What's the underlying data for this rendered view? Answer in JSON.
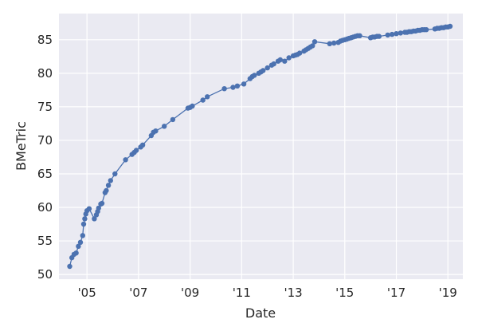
{
  "chart_data": {
    "type": "line",
    "xlabel": "Date",
    "ylabel": "BMeTric",
    "x_tick_labels": [
      "'05",
      "'07",
      "'09",
      "'11",
      "'13",
      "'15",
      "'17",
      "'19"
    ],
    "x_tick_dates": [
      "2005-01-01",
      "2007-01-01",
      "2009-01-01",
      "2011-01-01",
      "2013-01-01",
      "2015-01-01",
      "2017-01-01",
      "2019-01-01"
    ],
    "xlim": [
      "2003-12-01",
      "2019-08-01"
    ],
    "y_ticks": [
      50,
      55,
      60,
      65,
      70,
      75,
      80,
      85
    ],
    "ylim": [
      49.3,
      88.9
    ],
    "grid": true,
    "background": "#eaeaf2",
    "series_color": "#4c72b0",
    "series": [
      {
        "points": [
          [
            "2004-05-01",
            51.2
          ],
          [
            "2004-06-01",
            52.5
          ],
          [
            "2004-07-01",
            53.0
          ],
          [
            "2004-08-01",
            53.2
          ],
          [
            "2004-09-01",
            54.2
          ],
          [
            "2004-10-01",
            54.8
          ],
          [
            "2004-11-01",
            55.8
          ],
          [
            "2004-11-15",
            57.5
          ],
          [
            "2004-12-01",
            58.3
          ],
          [
            "2004-12-15",
            59.0
          ],
          [
            "2005-01-01",
            59.5
          ],
          [
            "2005-02-01",
            59.8
          ],
          [
            "2005-04-15",
            58.3
          ],
          [
            "2005-05-15",
            58.9
          ],
          [
            "2005-06-01",
            59.4
          ],
          [
            "2005-06-15",
            59.9
          ],
          [
            "2005-07-15",
            60.5
          ],
          [
            "2005-08-01",
            60.6
          ],
          [
            "2005-09-15",
            62.2
          ],
          [
            "2005-10-01",
            62.5
          ],
          [
            "2005-11-01",
            63.3
          ],
          [
            "2005-12-01",
            64.0
          ],
          [
            "2006-02-01",
            65.0
          ],
          [
            "2006-07-01",
            67.1
          ],
          [
            "2006-10-01",
            67.9
          ],
          [
            "2006-11-01",
            68.2
          ],
          [
            "2006-12-01",
            68.5
          ],
          [
            "2007-02-01",
            69.0
          ],
          [
            "2007-03-01",
            69.3
          ],
          [
            "2007-07-01",
            70.7
          ],
          [
            "2007-08-01",
            71.2
          ],
          [
            "2007-09-01",
            71.4
          ],
          [
            "2008-01-01",
            72.1
          ],
          [
            "2008-05-01",
            73.1
          ],
          [
            "2008-12-01",
            74.8
          ],
          [
            "2009-01-01",
            74.9
          ],
          [
            "2009-02-01",
            75.1
          ],
          [
            "2009-07-01",
            76.0
          ],
          [
            "2009-09-01",
            76.5
          ],
          [
            "2010-05-01",
            77.7
          ],
          [
            "2010-09-01",
            77.9
          ],
          [
            "2010-11-01",
            78.1
          ],
          [
            "2011-02-01",
            78.4
          ],
          [
            "2011-05-01",
            79.2
          ],
          [
            "2011-06-01",
            79.5
          ],
          [
            "2011-07-01",
            79.7
          ],
          [
            "2011-09-01",
            80.0
          ],
          [
            "2011-10-01",
            80.2
          ],
          [
            "2011-11-01",
            80.4
          ],
          [
            "2012-01-01",
            80.8
          ],
          [
            "2012-03-01",
            81.2
          ],
          [
            "2012-04-01",
            81.4
          ],
          [
            "2012-06-01",
            81.8
          ],
          [
            "2012-07-01",
            82.0
          ],
          [
            "2012-09-01",
            81.8
          ],
          [
            "2012-11-01",
            82.3
          ],
          [
            "2013-01-01",
            82.6
          ],
          [
            "2013-02-01",
            82.7
          ],
          [
            "2013-03-01",
            82.8
          ],
          [
            "2013-04-01",
            83.0
          ],
          [
            "2013-06-01",
            83.3
          ],
          [
            "2013-07-01",
            83.5
          ],
          [
            "2013-08-01",
            83.7
          ],
          [
            "2013-09-01",
            83.9
          ],
          [
            "2013-10-01",
            84.1
          ],
          [
            "2013-11-01",
            84.7
          ],
          [
            "2014-06-01",
            84.4
          ],
          [
            "2014-08-01",
            84.5
          ],
          [
            "2014-10-01",
            84.6
          ],
          [
            "2014-11-01",
            84.8
          ],
          [
            "2014-12-01",
            84.9
          ],
          [
            "2015-01-01",
            85.0
          ],
          [
            "2015-02-01",
            85.1
          ],
          [
            "2015-03-01",
            85.2
          ],
          [
            "2015-04-01",
            85.3
          ],
          [
            "2015-05-01",
            85.4
          ],
          [
            "2015-06-01",
            85.5
          ],
          [
            "2015-07-01",
            85.6
          ],
          [
            "2015-08-01",
            85.6
          ],
          [
            "2016-01-01",
            85.3
          ],
          [
            "2016-02-01",
            85.4
          ],
          [
            "2016-03-01",
            85.4
          ],
          [
            "2016-04-01",
            85.5
          ],
          [
            "2016-05-01",
            85.5
          ],
          [
            "2016-09-01",
            85.7
          ],
          [
            "2016-11-01",
            85.8
          ],
          [
            "2017-01-01",
            85.9
          ],
          [
            "2017-03-01",
            86.0
          ],
          [
            "2017-05-01",
            86.1
          ],
          [
            "2017-06-01",
            86.1
          ],
          [
            "2017-07-01",
            86.2
          ],
          [
            "2017-08-01",
            86.2
          ],
          [
            "2017-09-01",
            86.3
          ],
          [
            "2017-10-01",
            86.3
          ],
          [
            "2017-11-01",
            86.4
          ],
          [
            "2017-12-01",
            86.4
          ],
          [
            "2018-01-01",
            86.5
          ],
          [
            "2018-02-01",
            86.5
          ],
          [
            "2018-03-01",
            86.5
          ],
          [
            "2018-07-01",
            86.6
          ],
          [
            "2018-08-01",
            86.7
          ],
          [
            "2018-09-01",
            86.7
          ],
          [
            "2018-10-01",
            86.8
          ],
          [
            "2018-11-01",
            86.8
          ],
          [
            "2018-12-01",
            86.9
          ],
          [
            "2019-01-01",
            86.9
          ],
          [
            "2019-02-01",
            87.0
          ]
        ]
      }
    ]
  }
}
